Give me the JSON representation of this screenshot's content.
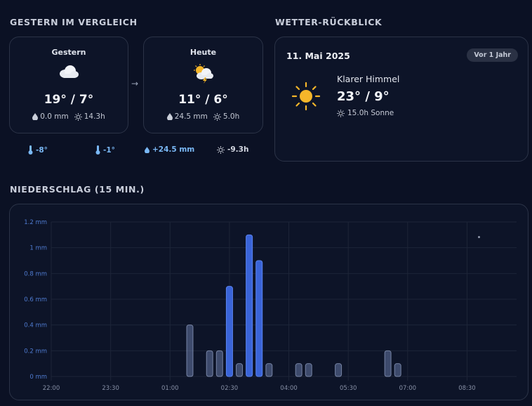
{
  "comparison": {
    "title": "GESTERN IM VERGLEICH",
    "yesterday": {
      "label": "Gestern",
      "icon": "cloud-icon",
      "temp": "19° / 7°",
      "precip": "0.0 mm",
      "sun": "14.3h"
    },
    "today": {
      "label": "Heute",
      "icon": "thunder-sun-cloud-icon",
      "temp": "11° / 6°",
      "precip": "24.5 mm",
      "sun": "5.0h"
    },
    "arrow": "→",
    "diffs": {
      "max_temp": "-8°",
      "min_temp": "-1°",
      "precip": "+24.5 mm",
      "sun": "-9.3h"
    }
  },
  "review": {
    "title": "WETTER-RÜCKBLICK",
    "date": "11. Mai 2025",
    "badge": "Vor 1 Jahr",
    "icon": "sun-icon",
    "condition": "Klarer Himmel",
    "temp": "23° / 9°",
    "sun": "15.0h Sonne"
  },
  "precipitation": {
    "title": "NIEDERSCHLAG (15 MIN.)"
  },
  "colors": {
    "accent_blue": "#3a64d8",
    "light_blue": "#7ab8f5",
    "sun_yellow": "#f5b62a"
  },
  "chart_data": {
    "type": "bar",
    "ylabel": "",
    "ylim": [
      0,
      1.2
    ],
    "yticks": [
      "0 mm",
      "0.2 mm",
      "0.4 mm",
      "0.6 mm",
      "0.8 mm",
      "1 mm",
      "1.2 mm"
    ],
    "xticks": [
      "22:00",
      "23:30",
      "01:00",
      "02:30",
      "04:00",
      "05:30",
      "07:00",
      "08:30"
    ],
    "x_start": "22:00",
    "x_end": "09:45",
    "bars": [
      {
        "time": "01:30",
        "value": 0.4,
        "highlight": false
      },
      {
        "time": "02:00",
        "value": 0.2,
        "highlight": false
      },
      {
        "time": "02:15",
        "value": 0.2,
        "highlight": false
      },
      {
        "time": "02:30",
        "value": 0.7,
        "highlight": true
      },
      {
        "time": "02:45",
        "value": 0.1,
        "highlight": false
      },
      {
        "time": "03:00",
        "value": 1.1,
        "highlight": true
      },
      {
        "time": "03:15",
        "value": 0.9,
        "highlight": true
      },
      {
        "time": "03:30",
        "value": 0.1,
        "highlight": false
      },
      {
        "time": "04:15",
        "value": 0.1,
        "highlight": false
      },
      {
        "time": "04:30",
        "value": 0.1,
        "highlight": false
      },
      {
        "time": "05:15",
        "value": 0.1,
        "highlight": false
      },
      {
        "time": "06:30",
        "value": 0.2,
        "highlight": false
      },
      {
        "time": "06:45",
        "value": 0.1,
        "highlight": false
      }
    ]
  }
}
